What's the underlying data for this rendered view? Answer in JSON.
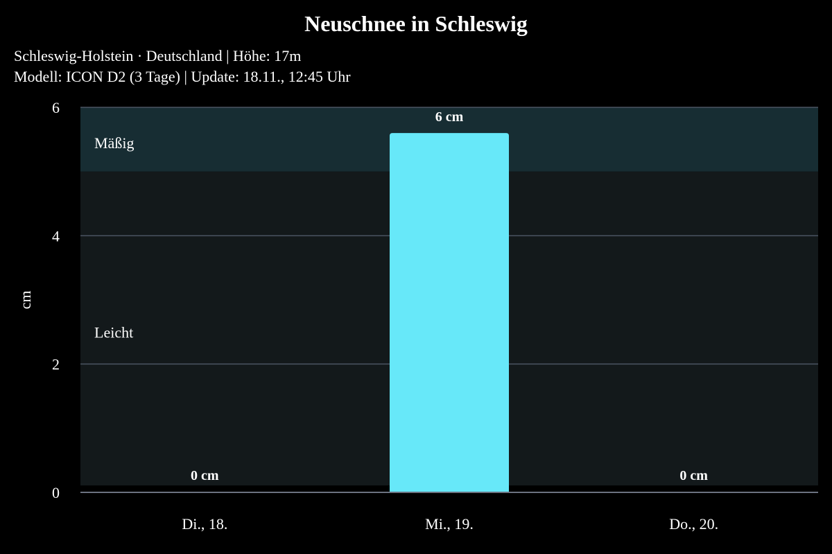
{
  "chart_data": {
    "type": "bar",
    "title": "Neuschnee in Schleswig",
    "subtitle_lines": [
      "Schleswig-Holstein · Deutschland | Höhe: 17m",
      "Modell: ICON D2 (3 Tage) | Update: 18.11., 12:45 Uhr"
    ],
    "xlabel": "",
    "ylabel": "cm",
    "ylim": [
      0,
      6
    ],
    "yticks": [
      0,
      2,
      4,
      6
    ],
    "categories": [
      "Di., 18.",
      "Mi., 19.",
      "Do., 20."
    ],
    "values": [
      0,
      5.6,
      0
    ],
    "data_labels": [
      "0 cm",
      "6 cm",
      "0 cm"
    ],
    "bands": [
      {
        "label": "Leicht",
        "range": [
          0,
          5
        ],
        "color": "#13191b"
      },
      {
        "label": "Mäßig",
        "range": [
          5,
          6
        ],
        "color": "#172d33"
      }
    ],
    "grid": true,
    "bar_color": "#67e8f9",
    "gridline_color": "#4b5563"
  }
}
